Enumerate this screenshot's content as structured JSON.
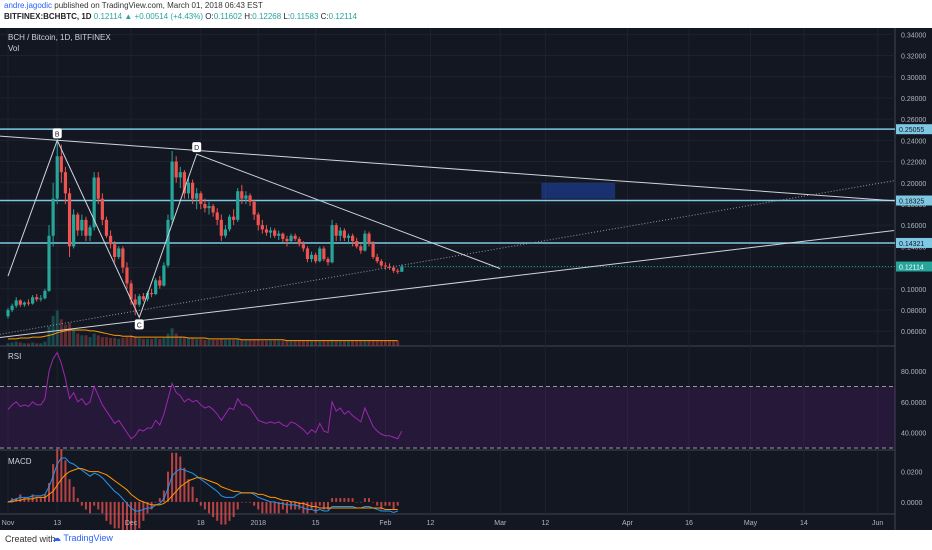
{
  "header": {
    "author": "andre.jagodic",
    "published_text": "published on TradingView.com, March 01, 2018 06:43 EST",
    "symbol": "BITFINEX:BCHBTC, 1D",
    "last": "0.12114",
    "change": "+0.00514 (+4.43%)",
    "o_label": "O:",
    "o_value": "0.11602",
    "h_label": "H:",
    "h_value": "0.12268",
    "l_label": "L:",
    "l_value": "0.11583",
    "c_label": "C:",
    "c_value": "0.12114"
  },
  "footer": {
    "created_with": "Created with",
    "brand": "TradingView"
  },
  "chart_data": {
    "type": "candlestick",
    "title": "BCH / Bitcoin, 1D, BITFINEX",
    "volume_label": "Vol",
    "price_axis": {
      "ylim": [
        0.046,
        0.346
      ],
      "ticks": [
        "0.34000",
        "0.32000",
        "0.30000",
        "0.28000",
        "0.26000",
        "0.24000",
        "0.22000",
        "0.20000",
        "0.18000",
        "0.16000",
        "0.14000",
        "0.12000",
        "0.10000",
        "0.08000",
        "0.06000"
      ]
    },
    "date_axis": {
      "labels": [
        {
          "text": "Nov",
          "day": 0
        },
        {
          "text": "13",
          "day": 12
        },
        {
          "text": "Dec",
          "day": 30
        },
        {
          "text": "18",
          "day": 47
        },
        {
          "text": "2018",
          "day": 61
        },
        {
          "text": "15",
          "day": 75
        },
        {
          "text": "Feb",
          "day": 92
        },
        {
          "text": "12",
          "day": 103
        },
        {
          "text": "Mar",
          "day": 120
        },
        {
          "text": "12",
          "day": 131
        },
        {
          "text": "Apr",
          "day": 151
        },
        {
          "text": "16",
          "day": 166
        },
        {
          "text": "May",
          "day": 181
        },
        {
          "text": "14",
          "day": 194
        },
        {
          "text": "Jun",
          "day": 212
        }
      ]
    },
    "ohlc": [
      [
        0.074,
        0.082,
        0.072,
        0.08
      ],
      [
        0.08,
        0.086,
        0.078,
        0.084
      ],
      [
        0.084,
        0.092,
        0.082,
        0.089
      ],
      [
        0.089,
        0.09,
        0.083,
        0.085
      ],
      [
        0.085,
        0.088,
        0.083,
        0.087
      ],
      [
        0.087,
        0.09,
        0.084,
        0.086
      ],
      [
        0.086,
        0.094,
        0.085,
        0.092
      ],
      [
        0.092,
        0.095,
        0.088,
        0.09
      ],
      [
        0.09,
        0.094,
        0.088,
        0.091
      ],
      [
        0.091,
        0.1,
        0.09,
        0.098
      ],
      [
        0.098,
        0.16,
        0.097,
        0.15
      ],
      [
        0.15,
        0.2,
        0.14,
        0.185
      ],
      [
        0.185,
        0.24,
        0.18,
        0.225
      ],
      [
        0.225,
        0.236,
        0.2,
        0.21
      ],
      [
        0.21,
        0.215,
        0.18,
        0.19
      ],
      [
        0.19,
        0.195,
        0.13,
        0.14
      ],
      [
        0.14,
        0.175,
        0.138,
        0.17
      ],
      [
        0.17,
        0.172,
        0.15,
        0.155
      ],
      [
        0.155,
        0.17,
        0.15,
        0.165
      ],
      [
        0.165,
        0.168,
        0.145,
        0.15
      ],
      [
        0.15,
        0.16,
        0.145,
        0.158
      ],
      [
        0.158,
        0.21,
        0.155,
        0.205
      ],
      [
        0.205,
        0.21,
        0.18,
        0.185
      ],
      [
        0.185,
        0.19,
        0.16,
        0.165
      ],
      [
        0.165,
        0.168,
        0.148,
        0.15
      ],
      [
        0.15,
        0.155,
        0.138,
        0.142
      ],
      [
        0.142,
        0.145,
        0.125,
        0.13
      ],
      [
        0.13,
        0.14,
        0.128,
        0.138
      ],
      [
        0.138,
        0.14,
        0.115,
        0.12
      ],
      [
        0.12,
        0.125,
        0.1,
        0.105
      ],
      [
        0.105,
        0.108,
        0.085,
        0.09
      ],
      [
        0.09,
        0.095,
        0.075,
        0.085
      ],
      [
        0.085,
        0.095,
        0.083,
        0.093
      ],
      [
        0.093,
        0.096,
        0.088,
        0.09
      ],
      [
        0.09,
        0.098,
        0.088,
        0.096
      ],
      [
        0.096,
        0.1,
        0.092,
        0.095
      ],
      [
        0.095,
        0.11,
        0.094,
        0.108
      ],
      [
        0.108,
        0.112,
        0.1,
        0.103
      ],
      [
        0.103,
        0.125,
        0.102,
        0.122
      ],
      [
        0.122,
        0.17,
        0.12,
        0.165
      ],
      [
        0.165,
        0.23,
        0.16,
        0.22
      ],
      [
        0.22,
        0.225,
        0.2,
        0.205
      ],
      [
        0.205,
        0.215,
        0.195,
        0.21
      ],
      [
        0.21,
        0.212,
        0.185,
        0.19
      ],
      [
        0.19,
        0.205,
        0.185,
        0.2
      ],
      [
        0.2,
        0.203,
        0.18,
        0.185
      ],
      [
        0.185,
        0.195,
        0.175,
        0.19
      ],
      [
        0.19,
        0.192,
        0.175,
        0.18
      ],
      [
        0.18,
        0.185,
        0.172,
        0.176
      ],
      [
        0.176,
        0.182,
        0.17,
        0.178
      ],
      [
        0.178,
        0.18,
        0.168,
        0.172
      ],
      [
        0.172,
        0.176,
        0.16,
        0.165
      ],
      [
        0.165,
        0.17,
        0.145,
        0.15
      ],
      [
        0.15,
        0.16,
        0.148,
        0.156
      ],
      [
        0.156,
        0.17,
        0.154,
        0.168
      ],
      [
        0.168,
        0.175,
        0.16,
        0.165
      ],
      [
        0.165,
        0.195,
        0.163,
        0.192
      ],
      [
        0.192,
        0.198,
        0.18,
        0.185
      ],
      [
        0.185,
        0.192,
        0.18,
        0.188
      ],
      [
        0.188,
        0.19,
        0.178,
        0.182
      ],
      [
        0.182,
        0.184,
        0.165,
        0.17
      ],
      [
        0.17,
        0.172,
        0.155,
        0.16
      ],
      [
        0.16,
        0.165,
        0.152,
        0.156
      ],
      [
        0.156,
        0.16,
        0.15,
        0.153
      ],
      [
        0.153,
        0.158,
        0.148,
        0.155
      ],
      [
        0.155,
        0.157,
        0.148,
        0.15
      ],
      [
        0.15,
        0.155,
        0.146,
        0.152
      ],
      [
        0.152,
        0.153,
        0.144,
        0.147
      ],
      [
        0.147,
        0.15,
        0.14,
        0.145
      ],
      [
        0.145,
        0.152,
        0.143,
        0.15
      ],
      [
        0.15,
        0.152,
        0.145,
        0.147
      ],
      [
        0.147,
        0.149,
        0.14,
        0.142
      ],
      [
        0.142,
        0.145,
        0.135,
        0.138
      ],
      [
        0.138,
        0.14,
        0.125,
        0.128
      ],
      [
        0.128,
        0.135,
        0.125,
        0.132
      ],
      [
        0.132,
        0.134,
        0.124,
        0.126
      ],
      [
        0.126,
        0.14,
        0.125,
        0.138
      ],
      [
        0.138,
        0.14,
        0.126,
        0.128
      ],
      [
        0.128,
        0.13,
        0.122,
        0.125
      ],
      [
        0.125,
        0.165,
        0.124,
        0.16
      ],
      [
        0.16,
        0.162,
        0.145,
        0.15
      ],
      [
        0.15,
        0.158,
        0.145,
        0.155
      ],
      [
        0.155,
        0.157,
        0.145,
        0.148
      ],
      [
        0.148,
        0.152,
        0.142,
        0.15
      ],
      [
        0.15,
        0.152,
        0.14,
        0.145
      ],
      [
        0.145,
        0.148,
        0.138,
        0.14
      ],
      [
        0.14,
        0.142,
        0.133,
        0.136
      ],
      [
        0.136,
        0.155,
        0.135,
        0.152
      ],
      [
        0.152,
        0.154,
        0.14,
        0.143
      ],
      [
        0.143,
        0.145,
        0.128,
        0.13
      ],
      [
        0.13,
        0.133,
        0.124,
        0.126
      ],
      [
        0.126,
        0.128,
        0.12,
        0.122
      ],
      [
        0.122,
        0.125,
        0.118,
        0.121
      ],
      [
        0.121,
        0.124,
        0.118,
        0.12
      ],
      [
        0.12,
        0.122,
        0.115,
        0.117
      ],
      [
        0.117,
        0.119,
        0.114,
        0.116
      ],
      [
        0.116,
        0.123,
        0.116,
        0.121
      ]
    ],
    "volume": [
      3,
      4,
      5,
      4,
      3,
      3,
      4,
      3,
      3,
      5,
      22,
      34,
      40,
      30,
      24,
      26,
      18,
      14,
      12,
      12,
      10,
      14,
      12,
      10,
      10,
      9,
      9,
      8,
      9,
      10,
      12,
      11,
      9,
      8,
      8,
      8,
      9,
      8,
      9,
      14,
      20,
      14,
      11,
      10,
      9,
      9,
      8,
      8,
      7,
      7,
      7,
      7,
      8,
      7,
      7,
      7,
      8,
      7,
      7,
      7,
      7,
      7,
      6,
      6,
      6,
      6,
      6,
      6,
      6,
      6,
      6,
      6,
      6,
      6,
      6,
      6,
      6,
      6,
      6,
      7,
      6,
      6,
      6,
      6,
      6,
      6,
      6,
      6,
      6,
      6,
      6,
      6,
      6,
      6,
      6,
      6
    ],
    "volume_ma": [
      8,
      8,
      8,
      9,
      9,
      9,
      10,
      10,
      10,
      11,
      12,
      13,
      15,
      16,
      17,
      18,
      18,
      18,
      18,
      18,
      17,
      17,
      16,
      15,
      14,
      13,
      12,
      12,
      11,
      11,
      11,
      10,
      10,
      10,
      10,
      10,
      10,
      10,
      10,
      10,
      10,
      10,
      10,
      10,
      9,
      9,
      9,
      9,
      9,
      8,
      8,
      8,
      8,
      8,
      8,
      8,
      8,
      7,
      7,
      7,
      7,
      7,
      7,
      7,
      7,
      7,
      7,
      7,
      6,
      6,
      6,
      6,
      6,
      6,
      6,
      6,
      6,
      6,
      6,
      6,
      6,
      6,
      6,
      6,
      6,
      6,
      6,
      6,
      6,
      6,
      6,
      6,
      6,
      6,
      6,
      6
    ],
    "horizontal_levels": [
      {
        "price": 0.25055,
        "label": "0.25055"
      },
      {
        "price": 0.18325,
        "label": "0.18325"
      },
      {
        "price": 0.14321,
        "label": "0.14321"
      }
    ],
    "last_price_label": "0.12114",
    "trendlines": [
      {
        "from": [
          -2,
          0.244
        ],
        "to": [
          216,
          0.183
        ]
      },
      {
        "from": [
          -2,
          0.054
        ],
        "to": [
          216,
          0.155
        ]
      }
    ],
    "dotted_line": {
      "from": [
        -2,
        0.057
      ],
      "to": [
        216,
        0.202
      ]
    },
    "pattern_points": [
      {
        "label": "",
        "day": 0,
        "price": 0.112
      },
      {
        "label": "B",
        "day": 12,
        "price": 0.24
      },
      {
        "label": "C",
        "day": 32,
        "price": 0.073
      },
      {
        "label": "D",
        "day": 46,
        "price": 0.227
      },
      {
        "label": "",
        "day": 120,
        "price": 0.119
      }
    ],
    "box": {
      "from_day": 130,
      "to_day": 148,
      "top": 0.2,
      "bottom": 0.185
    },
    "rsi": {
      "label": "RSI",
      "ylim": [
        30,
        95
      ],
      "ticks": [
        "80.0000",
        "60.0000",
        "40.0000"
      ],
      "upper": 70,
      "lower": 30,
      "values": [
        55,
        58,
        60,
        57,
        58,
        57,
        60,
        58,
        58,
        62,
        80,
        88,
        92,
        85,
        75,
        62,
        66,
        60,
        62,
        58,
        60,
        70,
        64,
        58,
        54,
        50,
        46,
        48,
        44,
        40,
        36,
        38,
        42,
        41,
        43,
        43,
        48,
        45,
        52,
        62,
        72,
        66,
        64,
        60,
        62,
        60,
        61,
        58,
        56,
        57,
        55,
        52,
        48,
        52,
        56,
        55,
        62,
        58,
        58,
        56,
        52,
        48,
        47,
        46,
        47,
        46,
        47,
        45,
        44,
        47,
        46,
        44,
        42,
        39,
        42,
        40,
        46,
        41,
        40,
        60,
        54,
        56,
        52,
        54,
        51,
        49,
        47,
        56,
        50,
        44,
        41,
        39,
        38,
        38,
        37,
        36,
        41
      ]
    },
    "macd": {
      "label": "MACD",
      "ylim": [
        -0.008,
        0.033
      ],
      "ticks": [
        "0.0200",
        "0.0000"
      ],
      "macd": [
        0.0,
        0.001,
        0.002,
        0.003,
        0.003,
        0.003,
        0.004,
        0.004,
        0.004,
        0.005,
        0.01,
        0.017,
        0.025,
        0.029,
        0.029,
        0.026,
        0.025,
        0.023,
        0.021,
        0.019,
        0.017,
        0.019,
        0.018,
        0.016,
        0.013,
        0.01,
        0.007,
        0.005,
        0.002,
        -0.001,
        -0.004,
        -0.006,
        -0.006,
        -0.005,
        -0.004,
        -0.004,
        -0.002,
        -0.001,
        0.002,
        0.009,
        0.017,
        0.02,
        0.022,
        0.021,
        0.02,
        0.019,
        0.017,
        0.015,
        0.013,
        0.011,
        0.009,
        0.007,
        0.004,
        0.003,
        0.003,
        0.003,
        0.005,
        0.006,
        0.006,
        0.006,
        0.005,
        0.003,
        0.002,
        0.001,
        0.0,
        0.0,
        -0.001,
        -0.001,
        -0.002,
        -0.002,
        -0.002,
        -0.003,
        -0.004,
        -0.005,
        -0.005,
        -0.006,
        -0.005,
        -0.006,
        -0.006,
        -0.003,
        -0.003,
        -0.003,
        -0.003,
        -0.003,
        -0.003,
        -0.004,
        -0.004,
        -0.003,
        -0.003,
        -0.004,
        -0.005,
        -0.006,
        -0.006,
        -0.006,
        -0.007,
        -0.006
      ],
      "signal": [
        0.0,
        0.0,
        0.001,
        0.001,
        0.002,
        0.002,
        0.002,
        0.003,
        0.003,
        0.003,
        0.005,
        0.007,
        0.011,
        0.015,
        0.018,
        0.02,
        0.021,
        0.022,
        0.022,
        0.021,
        0.02,
        0.02,
        0.02,
        0.019,
        0.018,
        0.016,
        0.014,
        0.012,
        0.01,
        0.008,
        0.005,
        0.003,
        0.001,
        0.0,
        -0.001,
        -0.002,
        -0.002,
        -0.002,
        -0.001,
        0.001,
        0.004,
        0.007,
        0.01,
        0.012,
        0.014,
        0.015,
        0.016,
        0.016,
        0.015,
        0.014,
        0.013,
        0.012,
        0.01,
        0.009,
        0.008,
        0.007,
        0.007,
        0.006,
        0.006,
        0.006,
        0.006,
        0.005,
        0.005,
        0.004,
        0.003,
        0.003,
        0.002,
        0.001,
        0.001,
        0.0,
        0.0,
        -0.001,
        -0.001,
        -0.002,
        -0.003,
        -0.003,
        -0.004,
        -0.004,
        -0.004,
        -0.004,
        -0.004,
        -0.004,
        -0.004,
        -0.004,
        -0.004,
        -0.004,
        -0.004,
        -0.004,
        -0.004,
        -0.004,
        -0.004,
        -0.004,
        -0.005,
        -0.005,
        -0.005,
        -0.005
      ]
    }
  }
}
